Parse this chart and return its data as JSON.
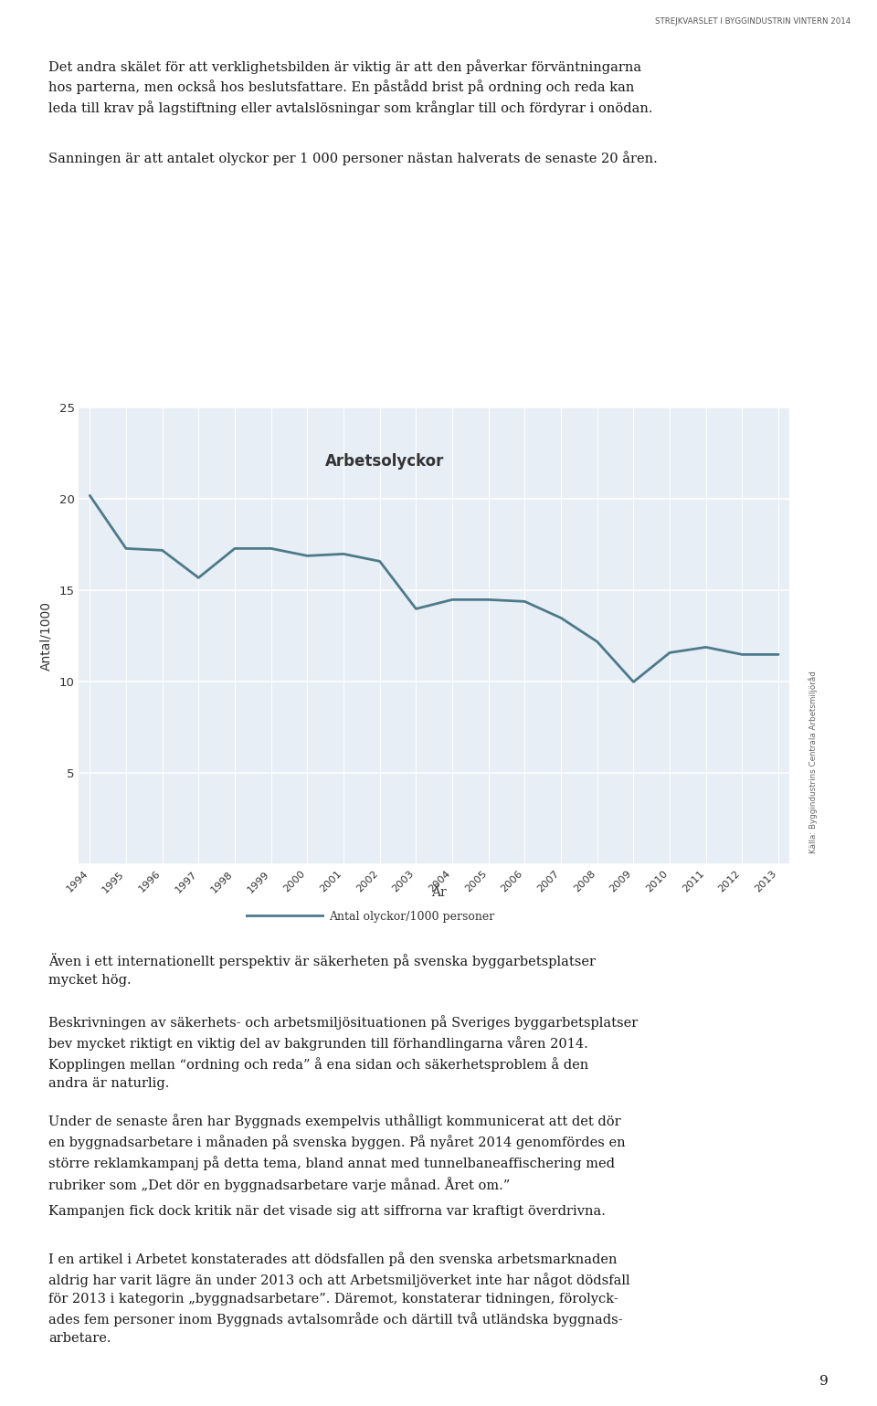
{
  "years": [
    1994,
    1995,
    1996,
    1997,
    1998,
    1999,
    2000,
    2001,
    2002,
    2003,
    2004,
    2005,
    2006,
    2007,
    2008,
    2009,
    2010,
    2011,
    2012,
    2013
  ],
  "values": [
    20.2,
    17.3,
    17.2,
    15.7,
    17.3,
    17.3,
    16.9,
    17.0,
    16.6,
    14.0,
    14.5,
    14.5,
    14.4,
    13.5,
    12.2,
    10.0,
    11.6,
    11.9,
    11.5,
    11.5
  ],
  "line_color": "#4d7a8a",
  "plot_area_color": "#e8eef5",
  "title_text": "Arbetsolyckor",
  "ylabel": "Antal/1000",
  "xlabel": "År",
  "legend_label": "Antal olyckor/1000 personer",
  "source_text": "Källa: Byggindustrins Centrala Arbetsmiljöråd",
  "ylim": [
    0,
    25
  ],
  "yticks": [
    0,
    5,
    10,
    15,
    20,
    25
  ],
  "header_text": "STREJKVARSLET I BYGGINDUSTRIN VINTERN 2014",
  "para1": "Det andra skälet för att verklighetsbilden är viktig är att den påverkar förväntningarna hos parterna, men också hos beslutsfattare. En påstådd brist på ordning och reda kan leda till krav på lagstiftning eller avtalslösningar som krånglar till och fördyrar i onödan.",
  "para2": "Sanningen är att antalet olyckor per 1 000 personer nästan halverats de senaste 20 åren.",
  "para3": ".Även i ett internationellt perspektiv är säkerheten på svenska byggarbetsplatser mycket hög.",
  "para4": "Beskrivningen av säkerhets- och arbetsmiljösituationen på Sveriges byggarbetsplatser blev mycket riktigt en viktig del av bakgrunden till förhandlingarna våren 2014. Kopplingen mellan “ordning och reda” å ena sidan och säkerhetsproblem å den andra är naturlig.",
  "para5a": "Under de senaste åren har Byggnads exempelvis uthålligt kommunicerat att det dör en byggnadsarbetare i månaden på svenska byggen. På nyåret 2014 genomfördes en större reklamkampanj på detta tema, bland annat med tunnelbaneaffischering med rubriker som ",
  "para5b": "Det dör en byggnadsarbetare varje månad. Året om.",
  "para6": "Kampanjen fick dock kritik när det visade sig att siffrorna var kraftigt överdrivna.",
  "para7": "I en artikel i Arbetet konstaterades att dödsfallen på den svenska arbetsmarknaden aldrig har varit lägre än under 2013 och att Arbetsmiljöverket inte har något dödsfall för 2013 i kategorin „byggnadsarbetare”. Däremot, konstaterar tidningen, förolyck-ades fem personer inom Byggnads avtalsområde och därtill två utländska byggnads-arbetare.",
  "page_number": "9"
}
